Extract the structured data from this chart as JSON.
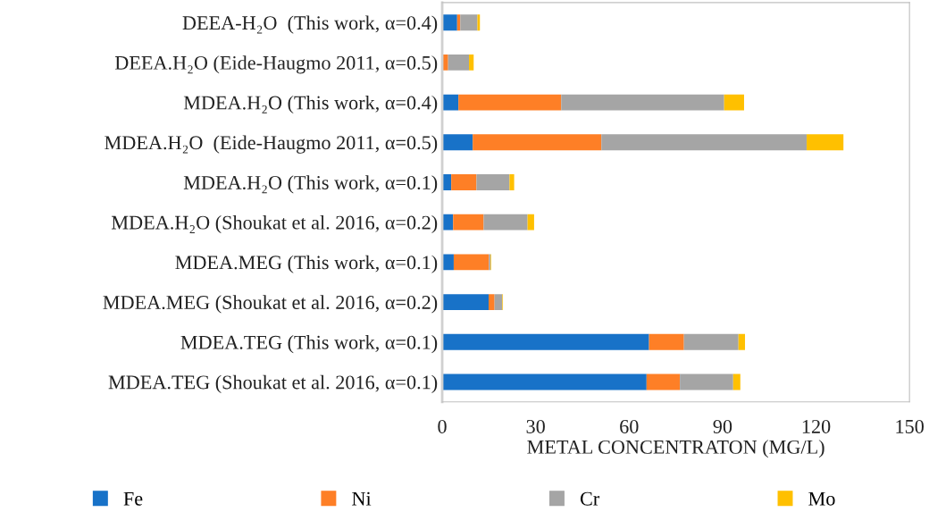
{
  "chart_data": {
    "type": "bar",
    "orientation": "horizontal",
    "stacked": true,
    "xlabel": "METAL CONCENTRATON (MG/L)",
    "categories": [
      "DEEA-H₂O  (This work, α=0.4)",
      "DEEA.H₂O (Eide-Haugmo 2011, α=0.5)",
      "MDEA.H₂O (This work, α=0.4)",
      "MDEA.H₂O  (Eide-Haugmo 2011, α=0.5)",
      "MDEA.H₂O (This work, α=0.1)",
      "MDEA.H₂O (Shoukat et al. 2016, α=0.2)",
      "MDEA.MEG (This work, α=0.1)",
      "MDEA.MEG (Shoukat et al. 2016, α=0.2)",
      "MDEA.TEG (This work, α=0.1)",
      "MDEA.TEG (Shoukat et al. 2016, α=0.1)"
    ],
    "series": [
      {
        "name": "Fe",
        "color": "#1872c8",
        "values": [
          4.8,
          0.2,
          5.2,
          9.8,
          2.9,
          3.5,
          3.7,
          14.9,
          66.4,
          65.6
        ]
      },
      {
        "name": "Ni",
        "color": "#fe7f26",
        "values": [
          1.0,
          1.7,
          33.0,
          41.3,
          8.1,
          9.8,
          11.3,
          1.9,
          11.2,
          10.7
        ]
      },
      {
        "name": "Cr",
        "color": "#a5a5a5",
        "values": [
          5.5,
          6.7,
          52.3,
          65.9,
          10.6,
          14.1,
          0.5,
          2.5,
          17.5,
          17.1
        ]
      },
      {
        "name": "Mo",
        "color": "#ffc000",
        "values": [
          0.8,
          1.5,
          6.4,
          11.8,
          1.5,
          2.1,
          0.2,
          0.2,
          2.1,
          2.3
        ]
      }
    ],
    "xlim": [
      0,
      150
    ],
    "xticks": [
      0,
      30,
      60,
      90,
      120,
      150
    ],
    "grid": false,
    "legend": "bottom"
  }
}
